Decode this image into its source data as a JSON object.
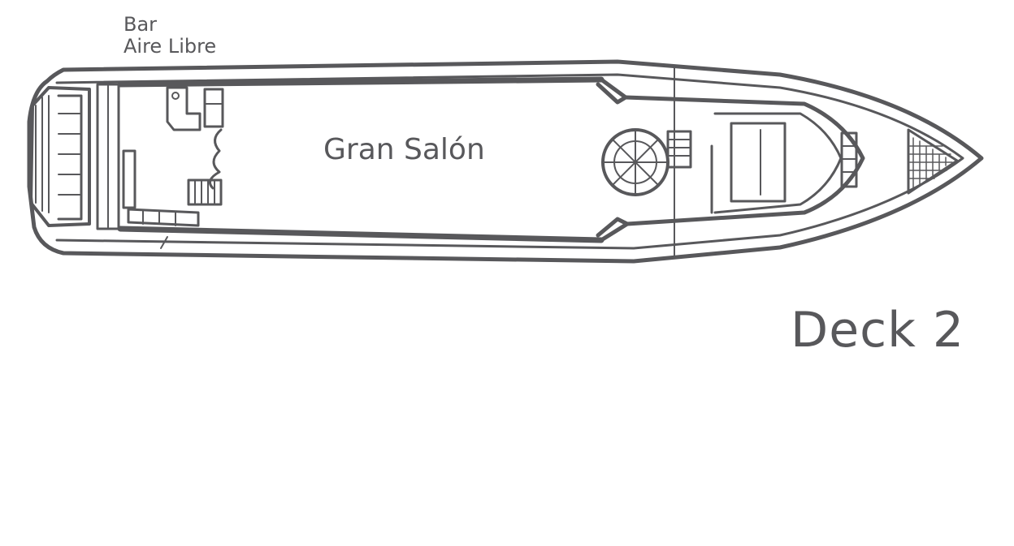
{
  "deck": {
    "title": "Deck 2"
  },
  "areas": {
    "bar_line1": "Bar",
    "bar_line2": "Aire Libre",
    "salon": "Gran Salón"
  },
  "colors": {
    "ink": "#58585b",
    "background": "#ffffff"
  }
}
